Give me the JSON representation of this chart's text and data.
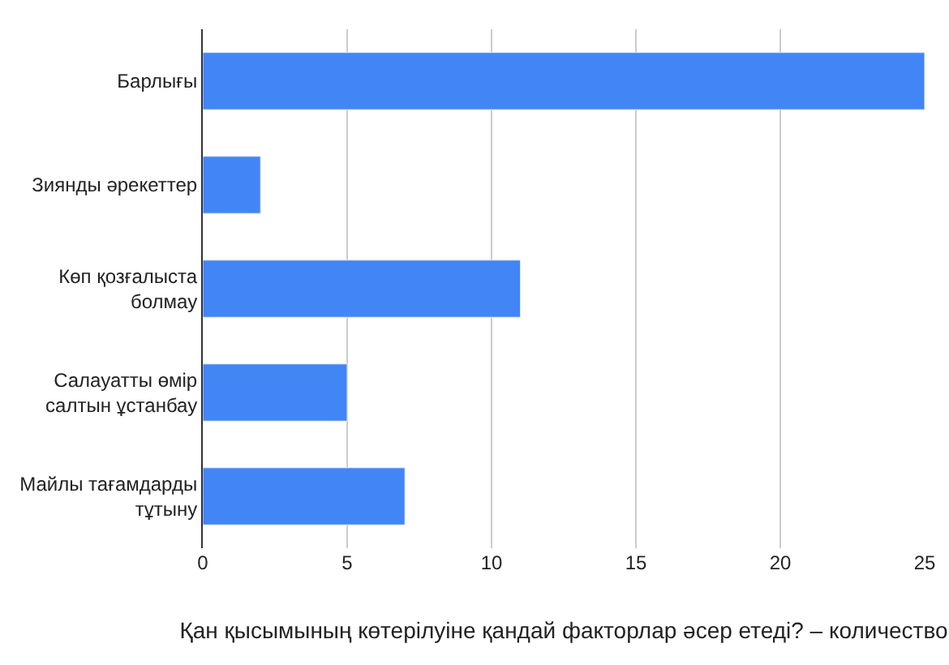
{
  "chart_data": {
    "type": "bar",
    "orientation": "horizontal",
    "xlabel": "Қан қысымының көтерілуіне қандай факторлар әсер етеді? – количество",
    "categories": [
      "Барлығы",
      "Зиянды әрекеттер",
      "Көп қозғалыста болмау",
      "Салауатты өмір салтын ұстанбау",
      "Майлы тағамдарды тұтыну"
    ],
    "values": [
      25,
      2,
      11,
      5,
      7
    ],
    "color": "#4285f4",
    "xlim": [
      0,
      25
    ],
    "xticks": [
      0,
      5,
      10,
      15,
      20,
      25
    ],
    "grid": "x",
    "legend": false
  }
}
